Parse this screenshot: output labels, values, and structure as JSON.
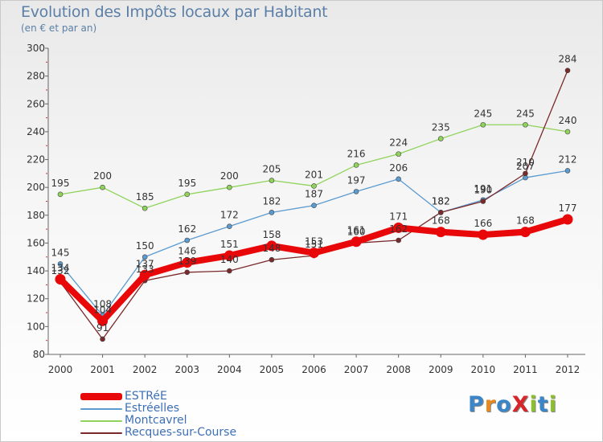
{
  "header": {
    "title": "Evolution des Impôts locaux par Habitant",
    "subtitle": "(en € et par an)"
  },
  "logo": {
    "text": "ProXiti",
    "letters": [
      "P",
      "r",
      "o",
      "X",
      "i",
      "t",
      "i"
    ],
    "colors": [
      "#3a86c8",
      "#e98a1f",
      "#3a86c8",
      "#d6262a",
      "#8bbf2d",
      "#3a86c8",
      "#8bbf2d"
    ]
  },
  "chart_data": {
    "type": "line",
    "title": "Evolution des Impôts locaux par Habitant",
    "subtitle": "(en € et par an)",
    "xlabel": "",
    "ylabel": "",
    "categories": [
      "2000",
      "2001",
      "2002",
      "2003",
      "2004",
      "2005",
      "2006",
      "2007",
      "2008",
      "2009",
      "2010",
      "2011",
      "2012"
    ],
    "ylim": [
      80,
      300
    ],
    "yticks": [
      80,
      100,
      120,
      140,
      160,
      180,
      200,
      220,
      240,
      260,
      280,
      300
    ],
    "grid": false,
    "legend_position": "bottom-left",
    "series": [
      {
        "name": "Montcavrel",
        "color": "#8fd35a",
        "values": [
          195,
          200,
          185,
          195,
          200,
          205,
          201,
          216,
          224,
          235,
          245,
          245,
          240
        ]
      },
      {
        "name": "Estréelles",
        "color": "#5b9bd0",
        "values": [
          145,
          108,
          150,
          162,
          172,
          182,
          187,
          197,
          206,
          182,
          191,
          207,
          212
        ]
      },
      {
        "name": "Recques-sur-Course",
        "color": "#7a2a2a",
        "values": [
          132,
          91,
          133,
          139,
          140,
          148,
          151,
          160,
          162,
          182,
          190,
          210,
          284
        ]
      },
      {
        "name": "ESTRéE",
        "color": "#e8080a",
        "values": [
          134,
          104,
          137,
          146,
          151,
          158,
          153,
          161,
          171,
          168,
          166,
          168,
          177
        ]
      }
    ],
    "legend_order": [
      "ESTRéE",
      "Estréelles",
      "Montcavrel",
      "Recques-sur-Course"
    ]
  }
}
